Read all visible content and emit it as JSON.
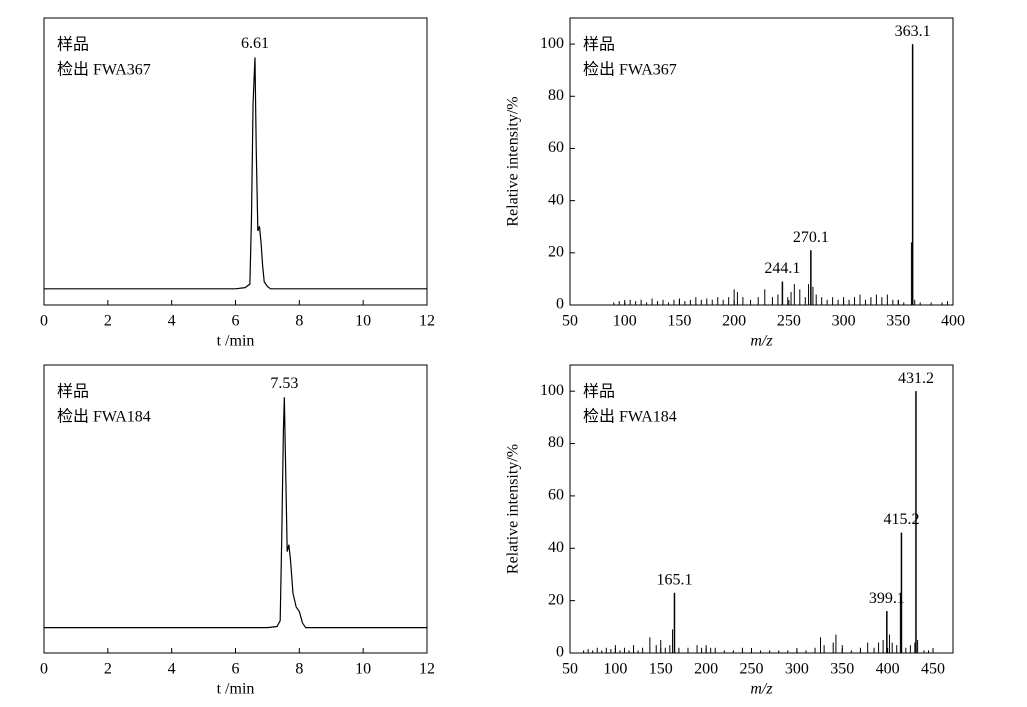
{
  "chart_data": [
    {
      "type": "line",
      "annotations": [
        "样品",
        "检出 FWA367"
      ],
      "xlabel": "t /min",
      "x": [
        0,
        6.0,
        6.3,
        6.45,
        6.5,
        6.55,
        6.61,
        6.65,
        6.7,
        6.75,
        6.8,
        6.85,
        6.9,
        7.0,
        7.1,
        7.3,
        12
      ],
      "values": [
        0,
        0,
        0.5,
        2,
        30,
        80,
        100,
        60,
        25,
        27,
        20,
        10,
        3,
        1,
        0,
        0,
        0
      ],
      "color": "#000000",
      "xlim": [
        0,
        12
      ],
      "xticks": [
        0,
        2,
        4,
        6,
        8,
        10,
        12
      ],
      "ylim": [
        -7,
        117
      ]
    },
    {
      "type": "bar",
      "annotations": [
        "样品",
        "检出 FWA367"
      ],
      "xlabel": "m/z",
      "ylabel": "Relative intensity/%",
      "x": [
        90,
        95,
        100,
        105,
        110,
        115,
        120,
        125,
        130,
        135,
        140,
        145,
        150,
        155,
        160,
        165,
        170,
        175,
        180,
        185,
        190,
        195,
        200,
        203,
        208,
        215,
        222,
        228,
        235,
        240,
        249,
        252,
        255,
        260,
        265,
        268,
        272,
        275,
        280,
        285,
        290,
        295,
        300,
        305,
        310,
        315,
        320,
        325,
        330,
        335,
        340,
        345,
        350,
        355,
        362,
        365,
        370,
        380,
        390,
        395
      ],
      "values": [
        1,
        1.5,
        1,
        2,
        1.5,
        2,
        1,
        2.5,
        1.5,
        2,
        1,
        2,
        2.5,
        1.5,
        2,
        3,
        2,
        2.5,
        2,
        3,
        2,
        3,
        6,
        5,
        3,
        2,
        3,
        6,
        3,
        4,
        3,
        5,
        8,
        6,
        3,
        8,
        7,
        4,
        3,
        2,
        3,
        2,
        3,
        2,
        3,
        4,
        2,
        3,
        4,
        3,
        4,
        2,
        2,
        1,
        24,
        2,
        1,
        1,
        1,
        1.5
      ],
      "peaks": {
        "x": [
          244.1,
          270.1,
          363.1
        ],
        "values": [
          9,
          21,
          100
        ]
      },
      "color": "#000000",
      "xlim": [
        50,
        400
      ],
      "xticks": [
        50,
        100,
        150,
        200,
        250,
        300,
        350,
        400
      ],
      "ylim": [
        0,
        110
      ],
      "yticks": [
        0,
        20,
        40,
        60,
        80,
        100
      ]
    },
    {
      "type": "line",
      "annotations": [
        "样品",
        "检出 FWA184"
      ],
      "xlabel": "t /min",
      "x": [
        0,
        7.0,
        7.3,
        7.4,
        7.45,
        7.5,
        7.53,
        7.57,
        7.62,
        7.67,
        7.72,
        7.8,
        7.9,
        8.0,
        8.1,
        8.2,
        12
      ],
      "values": [
        0,
        0,
        0.5,
        3,
        40,
        85,
        100,
        70,
        33,
        36,
        30,
        15,
        9,
        7,
        2,
        0,
        0
      ],
      "color": "#000000",
      "xlim": [
        0,
        12
      ],
      "xticks": [
        0,
        2,
        4,
        6,
        8,
        10,
        12
      ],
      "ylim": [
        -11,
        114
      ]
    },
    {
      "type": "bar",
      "annotations": [
        "样品",
        "检出 FWA184"
      ],
      "xlabel": "m/z",
      "ylabel": "Relative intensity/%",
      "x": [
        65,
        70,
        75,
        80,
        85,
        90,
        95,
        100,
        105,
        110,
        115,
        120,
        125,
        130,
        138,
        145,
        150,
        155,
        160,
        163,
        170,
        180,
        190,
        195,
        200,
        205,
        210,
        220,
        230,
        240,
        250,
        260,
        270,
        280,
        290,
        300,
        310,
        320,
        326,
        330,
        340,
        343,
        350,
        360,
        370,
        378,
        385,
        390,
        395,
        402,
        405,
        410,
        414,
        420,
        425,
        430,
        433,
        440,
        445
      ],
      "values": [
        1,
        1.5,
        1,
        2,
        1,
        2,
        1.5,
        3,
        1,
        2,
        1,
        3,
        1,
        2,
        6,
        3,
        5,
        2,
        3,
        9,
        2,
        2,
        3,
        2,
        3,
        2,
        2,
        1,
        1,
        2,
        1,
        1,
        1,
        1,
        1,
        1,
        1,
        2,
        6,
        3,
        4,
        7,
        3,
        1,
        2,
        4,
        2,
        4,
        5,
        7,
        4,
        3,
        23,
        2,
        3,
        4,
        5,
        1,
        1
      ],
      "peaks": {
        "x": [
          165.1,
          399.1,
          415.2,
          431.2
        ],
        "values": [
          23,
          16,
          46,
          100
        ]
      },
      "color": "#000000",
      "xlim": [
        50,
        472
      ],
      "xticks": [
        50,
        100,
        150,
        200,
        250,
        300,
        350,
        400,
        450
      ],
      "ylim": [
        0,
        110
      ],
      "yticks": [
        0,
        20,
        40,
        60,
        80,
        100
      ]
    }
  ]
}
